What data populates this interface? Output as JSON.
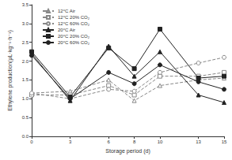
{
  "chart_data": {
    "type": "line",
    "x_label": "Storage period (d)",
    "y_label": "Ethylene production(μL·kg⁻¹·h⁻¹)",
    "x": [
      0,
      3,
      6,
      8,
      10,
      13,
      15
    ],
    "xlim": [
      0,
      15
    ],
    "xticks": [
      0,
      3,
      6,
      8,
      10,
      13,
      15
    ],
    "ylim": [
      0,
      3.5
    ],
    "yticks": [
      {
        "value": 0,
        "label": "0.0"
      },
      {
        "value": 0.5,
        "label": "0.5"
      },
      {
        "value": 1,
        "label": "1.0"
      },
      {
        "value": 1.5,
        "label": "1.5"
      },
      {
        "value": 2,
        "label": "2.0"
      },
      {
        "value": 2.5,
        "label": "2.5"
      },
      {
        "value": 3,
        "label": "3.0"
      },
      {
        "value": 3.5,
        "label": "3.5"
      }
    ],
    "grid": false,
    "legend": "top-left",
    "series": [
      {
        "name": "12°C Air",
        "color": "#888888",
        "marker": "open-triangle",
        "line_style": "dashed",
        "values": [
          1.15,
          1.2,
          1.5,
          0.95,
          1.35,
          1.5,
          1.55
        ]
      },
      {
        "name": "12°C 20% CO₂",
        "color": "#888888",
        "marker": "open-square",
        "line_style": "dashed",
        "values": [
          1.1,
          1.1,
          1.35,
          1.1,
          1.6,
          1.6,
          1.7
        ]
      },
      {
        "name": "12°C 60% CO₂",
        "color": "#888888",
        "marker": "open-circle",
        "line_style": "dashed",
        "values": [
          1.15,
          1.0,
          1.25,
          1.2,
          1.7,
          1.95,
          2.1
        ]
      },
      {
        "name": "20°C Air",
        "color": "#222222",
        "marker": "triangle",
        "line_style": "solid",
        "values": [
          2.2,
          0.95,
          2.4,
          1.6,
          2.25,
          1.1,
          0.9
        ]
      },
      {
        "name": "20°C 20% CO₂",
        "color": "#222222",
        "marker": "square",
        "line_style": "solid",
        "values": [
          2.25,
          1.05,
          2.35,
          1.8,
          2.85,
          1.55,
          1.6
        ]
      },
      {
        "name": "20°C 60% CO₂",
        "color": "#222222",
        "marker": "circle",
        "line_style": "solid",
        "values": [
          2.15,
          1.0,
          1.7,
          1.4,
          1.9,
          1.45,
          1.25
        ]
      }
    ]
  }
}
